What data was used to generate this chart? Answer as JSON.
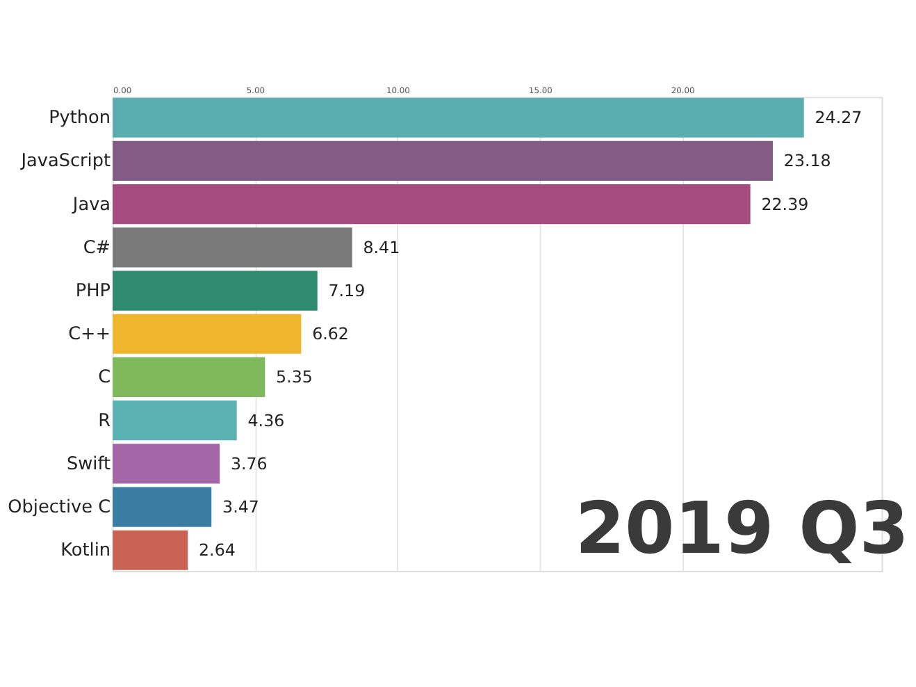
{
  "chart_data": {
    "type": "bar",
    "orientation": "horizontal",
    "categories": [
      "Python",
      "JavaScript",
      "Java",
      "C#",
      "PHP",
      "C++",
      "C",
      "R",
      "Swift",
      "Objective C",
      "Kotlin"
    ],
    "values": [
      24.27,
      23.18,
      22.39,
      8.41,
      7.19,
      6.62,
      5.35,
      4.36,
      3.76,
      3.47,
      2.64
    ],
    "colors": [
      "#5aaeb0",
      "#825c85",
      "#a54b80",
      "#7a7a7a",
      "#2e8b6e",
      "#efb52d",
      "#80b95c",
      "#5ab2b2",
      "#a466a6",
      "#3b7ca3",
      "#c86356"
    ],
    "xlim": [
      0,
      27
    ],
    "xticks": [
      {
        "value": 0,
        "label": "0.00"
      },
      {
        "value": 5,
        "label": "5.00"
      },
      {
        "value": 10,
        "label": "10.00"
      },
      {
        "value": 15,
        "label": "15.00"
      },
      {
        "value": 20,
        "label": "20.00"
      }
    ],
    "grid": "x",
    "data_labels": true,
    "annotations": [
      "2019 Q3"
    ]
  }
}
